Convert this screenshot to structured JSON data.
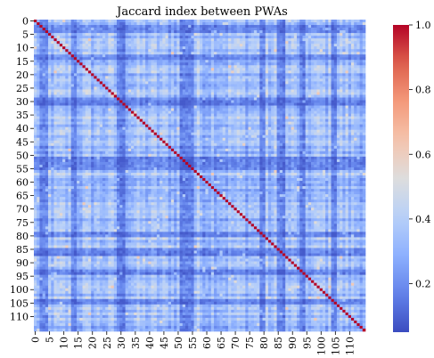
{
  "chart_data": {
    "type": "heatmap",
    "title": "Jaccard index between PWAs",
    "xlabel": "",
    "ylabel": "",
    "n": 116,
    "x_tick_labels": [
      "0",
      "5",
      "10",
      "15",
      "20",
      "25",
      "30",
      "35",
      "40",
      "45",
      "50",
      "55",
      "60",
      "65",
      "70",
      "75",
      "80",
      "85",
      "90",
      "95",
      "100",
      "105",
      "110"
    ],
    "y_tick_labels": [
      "0",
      "5",
      "10",
      "15",
      "20",
      "25",
      "30",
      "35",
      "40",
      "45",
      "50",
      "55",
      "60",
      "65",
      "70",
      "75",
      "80",
      "85",
      "90",
      "95",
      "100",
      "105",
      "110"
    ],
    "tick_step": 5,
    "diagonal_value": 1.0,
    "off_diagonal_typical_range": [
      0.15,
      0.55
    ],
    "low_similarity_groups": [
      [
        2,
        4
      ],
      [
        13,
        14
      ],
      [
        29,
        31
      ],
      [
        51,
        55
      ],
      [
        79,
        80
      ],
      [
        85,
        87
      ],
      [
        93,
        94
      ],
      [
        104,
        105
      ]
    ],
    "colorbar": {
      "colormap": "coolwarm",
      "vmin": 0.05,
      "vmax": 1.0,
      "tick_labels": [
        "0.2",
        "0.4",
        "0.6",
        "0.8",
        "1.0"
      ],
      "tick_values": [
        0.2,
        0.4,
        0.6,
        0.8,
        1.0
      ]
    },
    "grid": false,
    "legend": "colorbar-right"
  }
}
